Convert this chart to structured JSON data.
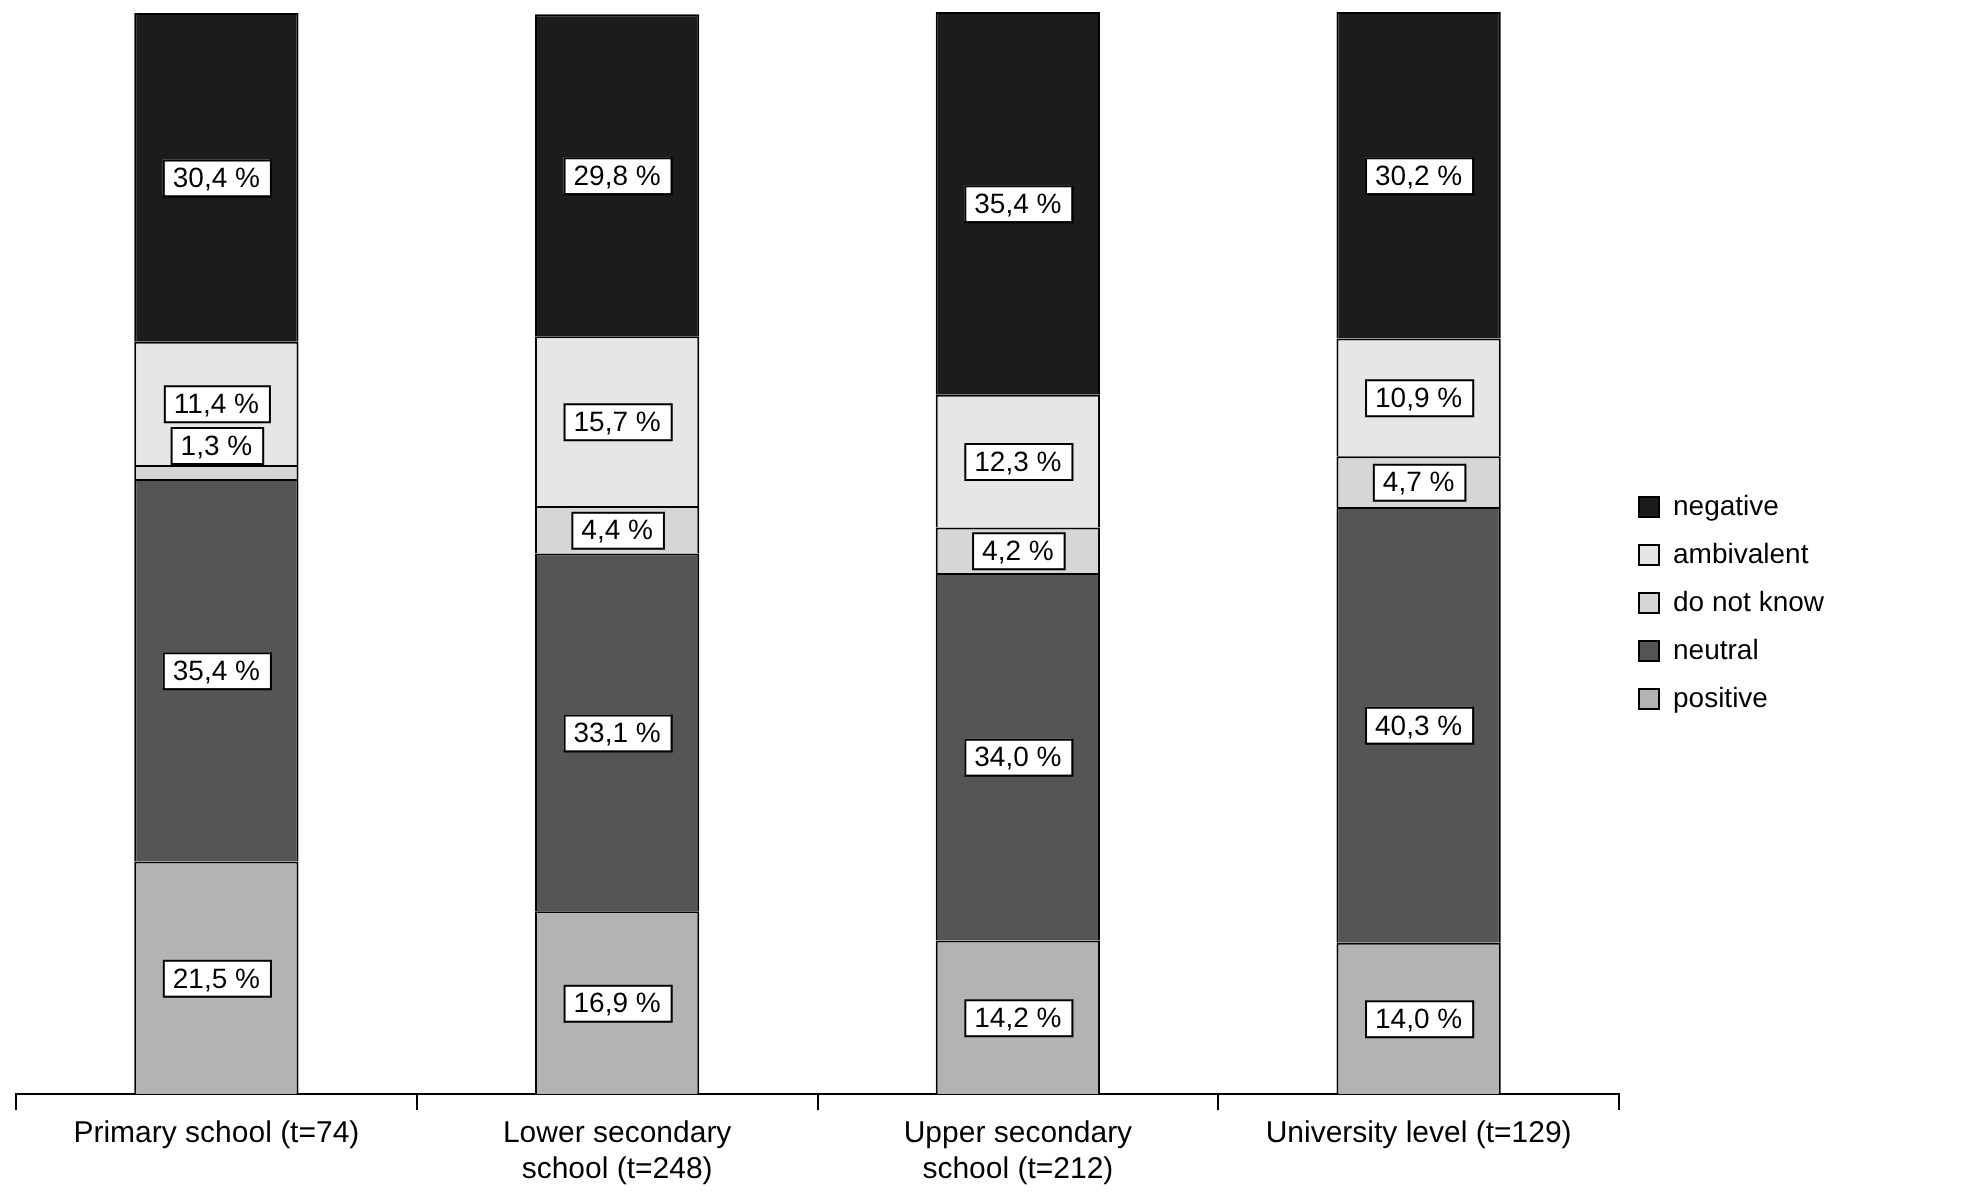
{
  "chart_data": {
    "type": "bar",
    "stacked": true,
    "legend": "right",
    "grid": false,
    "tick_labels": "x",
    "categories": [
      "Primary school (t=74)",
      "Lower secondary school (t=248)",
      "Upper secondary school (t=212)",
      "University level (t=129)"
    ],
    "series": [
      {
        "name": "positive",
        "color": "#b3b3b3",
        "values": [
          21.5,
          16.9,
          14.2,
          14.0
        ],
        "value_labels": [
          "21,5 %",
          "16,9 %",
          "14,2 %",
          "14,0 %"
        ]
      },
      {
        "name": "neutral",
        "color": "#555555",
        "values": [
          35.4,
          33.1,
          34.0,
          40.3
        ],
        "value_labels": [
          "35,4 %",
          "33,1 %",
          "34,0 %",
          "40,3 %"
        ]
      },
      {
        "name": "do not know",
        "color": "#d6d6d6",
        "values": [
          1.3,
          4.4,
          4.2,
          4.7
        ],
        "value_labels": [
          "1,3 %",
          "4,4 %",
          "4,2 %",
          "4,7 %"
        ]
      },
      {
        "name": "ambivalent",
        "color": "#e6e6e6",
        "values": [
          11.4,
          15.7,
          12.3,
          10.9
        ],
        "value_labels": [
          "11,4 %",
          "15,7 %",
          "12,3 %",
          "10,9 %"
        ]
      },
      {
        "name": "negative",
        "color": "#1c1c1c",
        "values": [
          30.4,
          29.8,
          35.4,
          30.2
        ],
        "value_labels": [
          "30,4 %",
          "29,8 %",
          "35,4 %",
          "30,2 %"
        ]
      }
    ]
  }
}
